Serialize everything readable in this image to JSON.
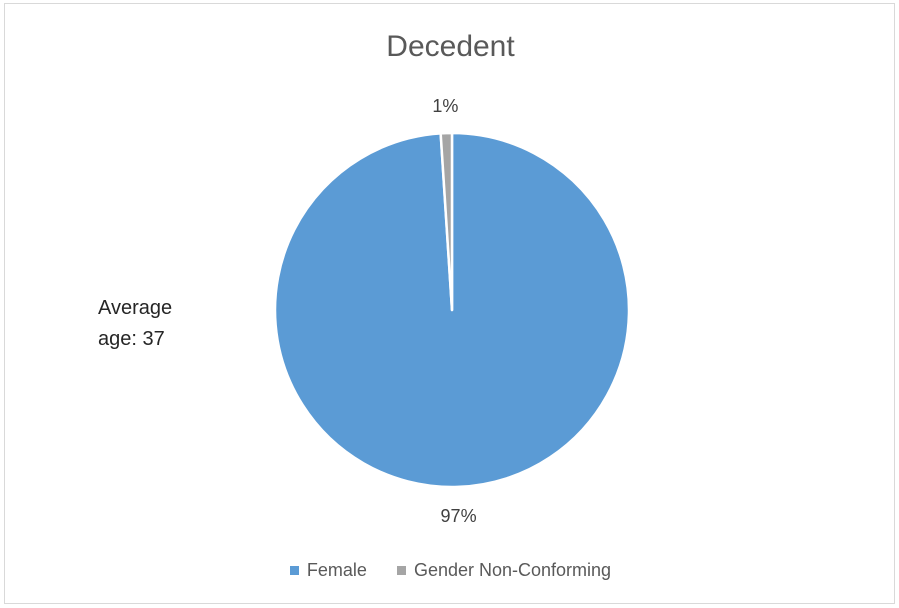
{
  "chart_data": {
    "type": "pie",
    "title": "Decedent",
    "categories": [
      "Female",
      "Gender Non-Conforming"
    ],
    "values": [
      97,
      1
    ],
    "data_labels": [
      "97%",
      "1%"
    ],
    "colors": [
      "#5b9bd5",
      "#a5a5a5"
    ],
    "legend_position": "bottom",
    "annotation": [
      "Average",
      "age: 37"
    ]
  }
}
